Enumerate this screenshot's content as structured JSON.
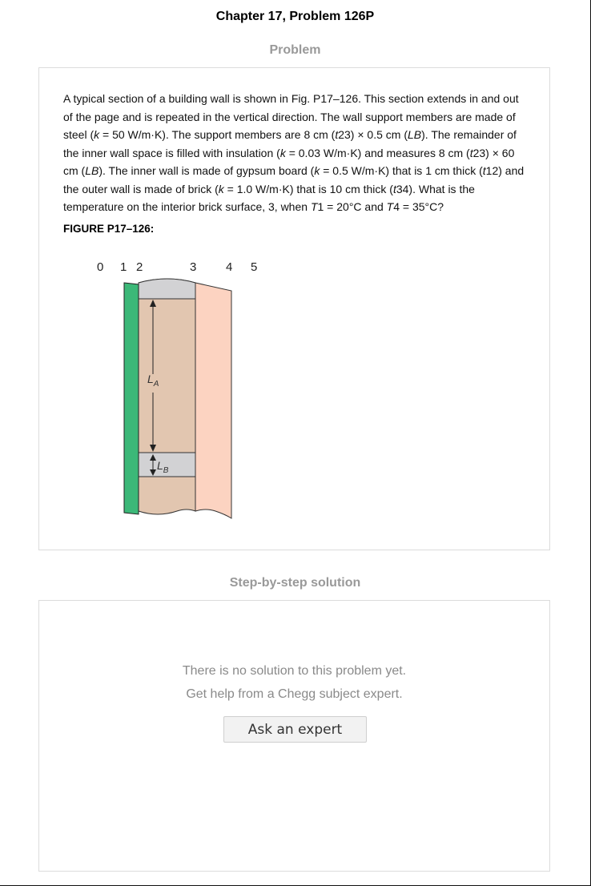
{
  "header": {
    "title": "Chapter 17, Problem 126P"
  },
  "problem": {
    "heading": "Problem",
    "text_parts": [
      "A typical section of a building wall is shown in Fig. P17–126. This section extends in and out of the page and is repeated in the vertical direction. The wall support members are made of steel (",
      "k",
      " = 50 W/m·K). The support members are 8 cm (",
      "t",
      "23) × 0.5 cm (",
      "LB",
      "). The remainder of the inner wall space is filled with insulation (",
      "k",
      " = 0.03 W/m·K) and measures 8 cm (",
      "t",
      "23) × 60 cm (",
      "LB",
      "). The inner wall is made of gypsum board (",
      "k",
      " = 0.5 W/m·K) that is 1 cm thick (",
      "t",
      "12) and the outer wall is made of brick (",
      "k",
      " = 1.0 W/m·K) that is 10 cm thick (",
      "t",
      "34). What is the temperature on the interior brick surface, 3, when ",
      "T",
      "1 = 20°C and ",
      "T",
      "4 = 35°C?"
    ],
    "figure_label": "FIGURE P17–126:",
    "figure": {
      "numbers": [
        "0",
        "1",
        "2",
        "3",
        "4",
        "5"
      ],
      "label_a_main": "L",
      "label_a_sub": "A",
      "label_b_main": "L",
      "label_b_sub": "B",
      "colors": {
        "gypsum": "#3cb878",
        "insulation": "#e2c6b0",
        "steel": "#d2d2d4",
        "brick": "#fcd3c1"
      }
    }
  },
  "solution": {
    "heading": "Step-by-step solution",
    "empty_line1": "There is no solution to this problem yet.",
    "empty_line2": "Get help from a Chegg subject expert.",
    "ask_button": "Ask an expert"
  }
}
